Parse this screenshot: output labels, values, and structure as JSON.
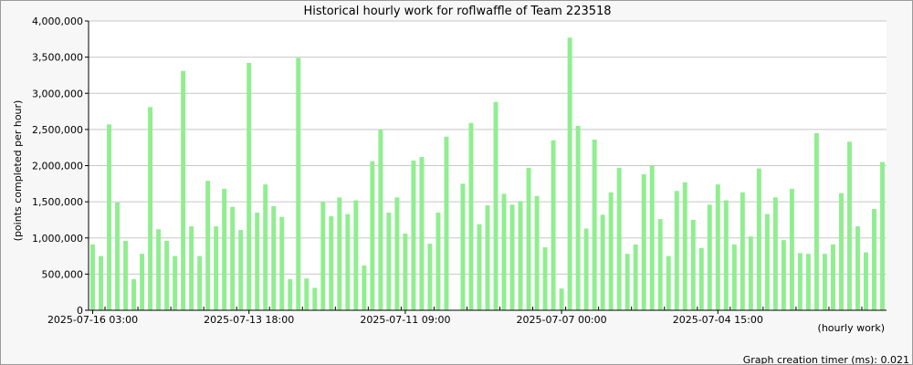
{
  "chart_data": {
    "type": "bar",
    "title": "Historical hourly work for roflwaffle of Team 223518",
    "ylabel": "(points completed per hour)",
    "xlabel": "(hourly work)",
    "ylim": [
      0,
      4000000
    ],
    "yticks": [
      0,
      500000,
      1000000,
      1500000,
      2000000,
      2500000,
      3000000,
      3500000,
      4000000
    ],
    "ytick_labels": [
      "0",
      "500,000",
      "1,000,000",
      "1,500,000",
      "2,000,000",
      "2,500,000",
      "3,000,000",
      "3,500,000",
      "4,000,000"
    ],
    "xtick_labels": [
      {
        "index": 0,
        "label": "2025-07-16 03:00"
      },
      {
        "index": 19,
        "label": "2025-07-13 18:00"
      },
      {
        "index": 38,
        "label": "2025-07-11 09:00"
      },
      {
        "index": 57,
        "label": "2025-07-07 00:00"
      },
      {
        "index": 76,
        "label": "2025-07-04 15:00"
      }
    ],
    "grid": true,
    "bar_color": "#90ee90",
    "values": [
      910000,
      750000,
      2570000,
      1490000,
      960000,
      430000,
      780000,
      2810000,
      1120000,
      960000,
      750000,
      3310000,
      1160000,
      750000,
      1790000,
      1160000,
      1680000,
      1430000,
      1110000,
      3420000,
      1350000,
      1740000,
      1440000,
      1290000,
      430000,
      3490000,
      440000,
      310000,
      1500000,
      1300000,
      1560000,
      1330000,
      1520000,
      620000,
      2060000,
      2500000,
      1350000,
      1560000,
      1060000,
      2070000,
      2120000,
      920000,
      1350000,
      2400000,
      0,
      1750000,
      2590000,
      1190000,
      1450000,
      2880000,
      1610000,
      1460000,
      1510000,
      1970000,
      1580000,
      870000,
      2350000,
      300000,
      3770000,
      2550000,
      1130000,
      2360000,
      1320000,
      1630000,
      1970000,
      780000,
      910000,
      1880000,
      2000000,
      1260000,
      750000,
      1650000,
      1770000,
      1250000,
      860000,
      1460000,
      1740000,
      1520000,
      910000,
      1630000,
      1020000,
      1960000,
      1330000,
      1560000,
      970000,
      1680000,
      790000,
      780000,
      2450000,
      780000,
      910000,
      1620000,
      2330000,
      1160000,
      800000,
      1400000,
      2050000
    ]
  },
  "footer": {
    "timer_label": "Graph creation timer (ms): 0.021"
  }
}
